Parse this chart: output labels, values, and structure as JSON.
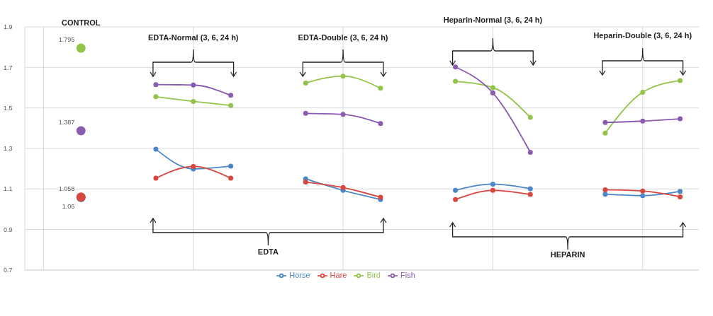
{
  "chart_data": {
    "type": "line",
    "categories": [
      null,
      null,
      null,
      null,
      null,
      null,
      null,
      null,
      null,
      null,
      null,
      null,
      null,
      null,
      null,
      null,
      null,
      null
    ],
    "series": [
      {
        "name": "Horse",
        "color": "#4a86c8",
        "values": [
          null,
          1.058,
          null,
          1.296,
          1.199,
          1.213,
          null,
          1.15,
          1.093,
          1.048,
          null,
          1.093,
          1.124,
          1.101,
          null,
          1.074,
          1.067,
          1.088
        ],
        "value_labels": [
          null,
          "1.058",
          null,
          null,
          null,
          null,
          null,
          null,
          null,
          null,
          null,
          null,
          null,
          null,
          null,
          null,
          null,
          null
        ]
      },
      {
        "name": "Hare",
        "color": "#d9463f",
        "values": [
          null,
          1.06,
          null,
          1.153,
          1.211,
          1.153,
          null,
          1.134,
          1.107,
          1.059,
          null,
          1.048,
          1.093,
          1.073,
          null,
          1.096,
          1.09,
          1.061
        ],
        "value_labels": [
          null,
          "1.06",
          null,
          null,
          null,
          null,
          null,
          null,
          null,
          null,
          null,
          null,
          null,
          null,
          null,
          null,
          null,
          null
        ]
      },
      {
        "name": "Bird",
        "color": "#92c44a",
        "values": [
          null,
          1.795,
          null,
          1.555,
          1.532,
          1.512,
          null,
          1.623,
          1.657,
          1.597,
          null,
          1.631,
          1.6,
          1.453,
          null,
          1.376,
          1.577,
          1.635
        ],
        "value_labels": [
          null,
          "1.795",
          null,
          null,
          null,
          null,
          null,
          null,
          null,
          null,
          null,
          null,
          null,
          null,
          null,
          null,
          null,
          null
        ]
      },
      {
        "name": "Fish",
        "color": "#8a5bb0",
        "values": [
          null,
          1.387,
          null,
          1.615,
          1.613,
          1.562,
          null,
          1.473,
          1.468,
          1.423,
          null,
          1.702,
          1.574,
          1.281,
          null,
          1.428,
          1.435,
          1.446
        ],
        "value_labels": [
          null,
          "1.387",
          null,
          null,
          null,
          null,
          null,
          null,
          null,
          null,
          null,
          null,
          null,
          null,
          null,
          null,
          null,
          null
        ]
      }
    ],
    "ylim": [
      0.7,
      1.9
    ],
    "yticks": [
      0.7,
      0.9,
      1.1,
      1.3,
      1.5,
      1.7,
      1.9
    ],
    "annotations": [
      "CONTROL",
      "EDTA-Normal (3, 6, 24 h)",
      "EDTA-Double (3, 6, 24 h)",
      "Heparin-Normal (3, 6, 24 h)",
      "Heparin-Double (3, 6, 24 h)",
      "EDTA",
      "HEPARIN"
    ],
    "grid": true,
    "legend": "bottom",
    "marker": "circle",
    "tick_labels": "y"
  }
}
